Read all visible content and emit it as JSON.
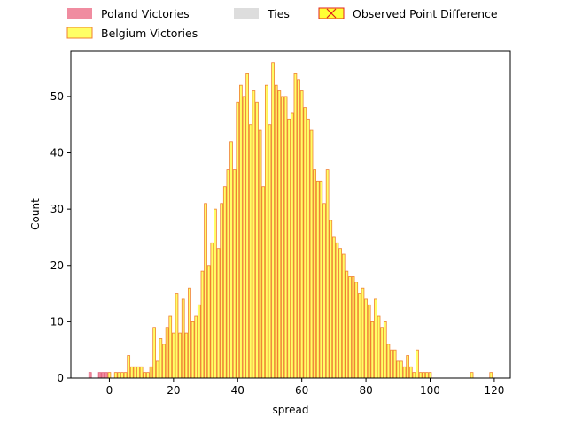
{
  "chart_data": {
    "type": "bar",
    "xlabel": "spread",
    "ylabel": "Count",
    "xlim": [
      -12,
      125
    ],
    "ylim": [
      0,
      58
    ],
    "x_ticks": [
      0,
      20,
      40,
      60,
      80,
      100,
      120
    ],
    "y_ticks": [
      0,
      10,
      20,
      30,
      40,
      50
    ],
    "bin_width": 1,
    "legend_position": "above plot, horizontal",
    "series": [
      {
        "name": "Poland Victories",
        "fill": "#f08ca0",
        "edge": "#e0607a",
        "bins": [
          [
            -6,
            1
          ],
          [
            -3,
            1
          ],
          [
            -2,
            1
          ],
          [
            -1,
            1
          ]
        ]
      },
      {
        "name": "Ties",
        "fill": "#dddddd",
        "edge": "#dddddd",
        "bins": []
      },
      {
        "name": "Belgium Victories",
        "fill": "#ffff66",
        "edge": "#f08030",
        "bins": [
          [
            0,
            1
          ],
          [
            2,
            1
          ],
          [
            3,
            1
          ],
          [
            4,
            1
          ],
          [
            5,
            1
          ],
          [
            6,
            4
          ],
          [
            7,
            2
          ],
          [
            8,
            2
          ],
          [
            9,
            2
          ],
          [
            10,
            2
          ],
          [
            11,
            1
          ],
          [
            12,
            1
          ],
          [
            13,
            2
          ],
          [
            14,
            9
          ],
          [
            15,
            3
          ],
          [
            16,
            7
          ],
          [
            17,
            6
          ],
          [
            18,
            9
          ],
          [
            19,
            11
          ],
          [
            20,
            8
          ],
          [
            21,
            15
          ],
          [
            22,
            8
          ],
          [
            23,
            14
          ],
          [
            24,
            8
          ],
          [
            25,
            16
          ],
          [
            26,
            10
          ],
          [
            27,
            11
          ],
          [
            28,
            13
          ],
          [
            29,
            19
          ],
          [
            30,
            31
          ],
          [
            31,
            20
          ],
          [
            32,
            24
          ],
          [
            33,
            30
          ],
          [
            34,
            23
          ],
          [
            35,
            31
          ],
          [
            36,
            34
          ],
          [
            37,
            37
          ],
          [
            38,
            42
          ],
          [
            39,
            37
          ],
          [
            40,
            49
          ],
          [
            41,
            52
          ],
          [
            42,
            50
          ],
          [
            43,
            54
          ],
          [
            44,
            45
          ],
          [
            45,
            51
          ],
          [
            46,
            49
          ],
          [
            47,
            44
          ],
          [
            48,
            34
          ],
          [
            49,
            52
          ],
          [
            50,
            45
          ],
          [
            51,
            56
          ],
          [
            52,
            52
          ],
          [
            53,
            51
          ],
          [
            54,
            50
          ],
          [
            55,
            50
          ],
          [
            56,
            46
          ],
          [
            57,
            47
          ],
          [
            58,
            54
          ],
          [
            59,
            53
          ],
          [
            60,
            51
          ],
          [
            61,
            48
          ],
          [
            62,
            46
          ],
          [
            63,
            44
          ],
          [
            64,
            37
          ],
          [
            65,
            35
          ],
          [
            66,
            35
          ],
          [
            67,
            31
          ],
          [
            68,
            37
          ],
          [
            69,
            28
          ],
          [
            70,
            25
          ],
          [
            71,
            24
          ],
          [
            72,
            23
          ],
          [
            73,
            22
          ],
          [
            74,
            19
          ],
          [
            75,
            18
          ],
          [
            76,
            18
          ],
          [
            77,
            17
          ],
          [
            78,
            15
          ],
          [
            79,
            16
          ],
          [
            80,
            14
          ],
          [
            81,
            13
          ],
          [
            82,
            10
          ],
          [
            83,
            14
          ],
          [
            84,
            11
          ],
          [
            85,
            9
          ],
          [
            86,
            10
          ],
          [
            87,
            6
          ],
          [
            88,
            5
          ],
          [
            89,
            5
          ],
          [
            90,
            3
          ],
          [
            91,
            3
          ],
          [
            92,
            2
          ],
          [
            93,
            4
          ],
          [
            94,
            2
          ],
          [
            95,
            1
          ],
          [
            96,
            5
          ],
          [
            97,
            1
          ],
          [
            98,
            1
          ],
          [
            99,
            1
          ],
          [
            100,
            1
          ],
          [
            113,
            1
          ],
          [
            119,
            1
          ]
        ]
      }
    ],
    "annotation_legend": {
      "name": "Observed Point Difference",
      "fill": "#ffff33",
      "edge": "#e02020"
    }
  }
}
